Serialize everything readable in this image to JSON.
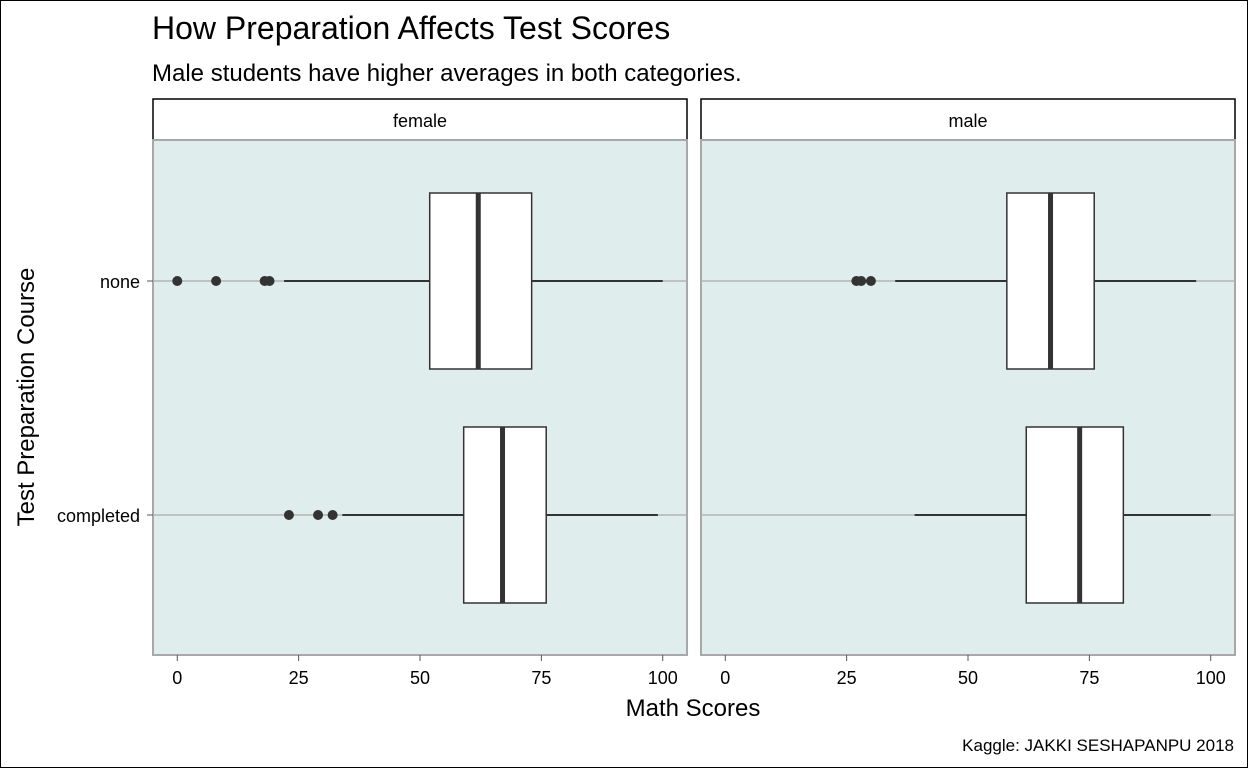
{
  "chart_data": {
    "type": "boxplot",
    "title": "How Preparation Affects Test Scores",
    "subtitle": "Male students have higher averages in both categories.",
    "xlabel": "Math Scores",
    "ylabel": "Test Preparation Course",
    "caption": "Kaggle: JAKKI SESHAPANPU 2018",
    "xlim": [
      -5,
      105
    ],
    "x_ticks": [
      0,
      25,
      50,
      75,
      100
    ],
    "categories": [
      "none",
      "completed"
    ],
    "panel_bg": "#e0eded",
    "box_fill": "#ffffff",
    "line_color": "#333333",
    "facets": [
      {
        "name": "female",
        "groups": [
          {
            "category": "none",
            "whisker_low": 22,
            "q1": 52,
            "median": 62,
            "q3": 73,
            "whisker_high": 100,
            "outliers": [
              0,
              8,
              18,
              19
            ]
          },
          {
            "category": "completed",
            "whisker_low": 34,
            "q1": 59,
            "median": 67,
            "q3": 76,
            "whisker_high": 99,
            "outliers": [
              23,
              29,
              32
            ]
          }
        ]
      },
      {
        "name": "male",
        "groups": [
          {
            "category": "none",
            "whisker_low": 35,
            "q1": 58,
            "median": 67,
            "q3": 76,
            "whisker_high": 97,
            "outliers": [
              27,
              28,
              30
            ]
          },
          {
            "category": "completed",
            "whisker_low": 39,
            "q1": 62,
            "median": 73,
            "q3": 82,
            "whisker_high": 100,
            "outliers": []
          }
        ]
      }
    ]
  }
}
